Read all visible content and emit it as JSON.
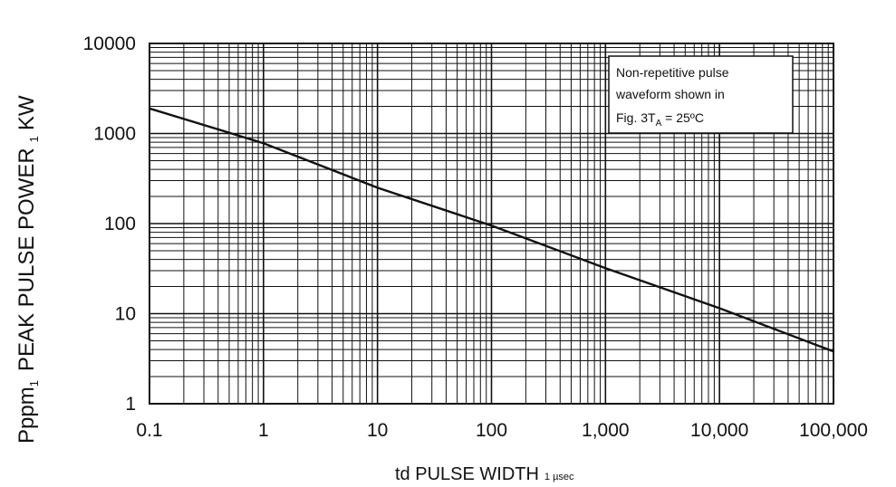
{
  "chart_data": {
    "type": "line",
    "scale": {
      "x": "log",
      "y": "log"
    },
    "xlim": [
      0.1,
      100000
    ],
    "ylim": [
      1,
      10000
    ],
    "grid": true,
    "x_tick_values": [
      0.1,
      1,
      10,
      100,
      1000,
      10000,
      100000
    ],
    "x_tick_labels": [
      "0.1",
      "1",
      "10",
      "100",
      "1,000",
      "10,000",
      "100,000"
    ],
    "y_tick_values": [
      1,
      10,
      100,
      1000,
      10000
    ],
    "y_tick_labels": [
      "1",
      "10",
      "100",
      "1000",
      "10000"
    ],
    "xlabel": {
      "main": "td PULSE WIDTH",
      "sub": "1 µsec"
    },
    "ylabel": {
      "prefix": "Pppm",
      "prefix_sub": "1",
      "main": "PEAK PULSE POWER",
      "sub": "1",
      "unit": "KW"
    },
    "series": [
      {
        "x": [
          0.1,
          1,
          10,
          100,
          1000,
          10000,
          100000
        ],
        "y": [
          1900,
          780,
          250,
          95,
          32,
          11.5,
          3.8
        ]
      }
    ],
    "annotation": {
      "lines": [
        "Non-repetitive pulse",
        "waveform shown in"
      ],
      "last_line": {
        "pre": "Fig. 3T",
        "sub": "A",
        "post": " = 25ºC"
      },
      "position": "top-right"
    }
  }
}
